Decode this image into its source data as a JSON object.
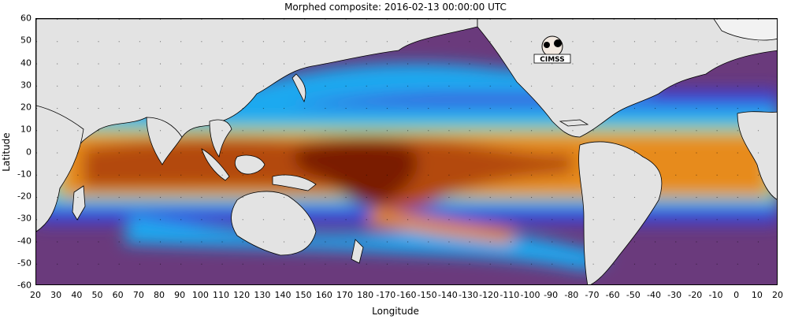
{
  "title": "Morphed composite: 2016-02-13 00:00:00 UTC",
  "xlabel": "Longitude",
  "ylabel": "Latitude",
  "x_ticks": [
    "20",
    "30",
    "40",
    "50",
    "60",
    "70",
    "80",
    "90",
    "100",
    "110",
    "120",
    "130",
    "140",
    "150",
    "160",
    "170",
    "180",
    "-170",
    "-160",
    "-150",
    "-140",
    "-130",
    "-120",
    "-110",
    "-100",
    "-90",
    "-80",
    "-70",
    "-60",
    "-50",
    "-40",
    "-30",
    "-20",
    "-10",
    "0",
    "10",
    "20"
  ],
  "y_ticks": [
    "60",
    "50",
    "40",
    "30",
    "20",
    "10",
    "0",
    "-10",
    "-20",
    "-30",
    "-40",
    "-50",
    "-60"
  ],
  "logo_text": "CIMSS",
  "colors": {
    "land": "#e3e3e3",
    "very_dry": "#7a2f86",
    "dry": "#3c3fd9",
    "medium": "#1ea9f0",
    "moist": "#8fe38a",
    "wet": "#e78b1f",
    "very_wet": "#b34a0c",
    "extreme": "#7a1f05"
  },
  "map_extent": {
    "lon_range": [
      20,
      380
    ],
    "lat_range": [
      -60,
      60
    ]
  }
}
